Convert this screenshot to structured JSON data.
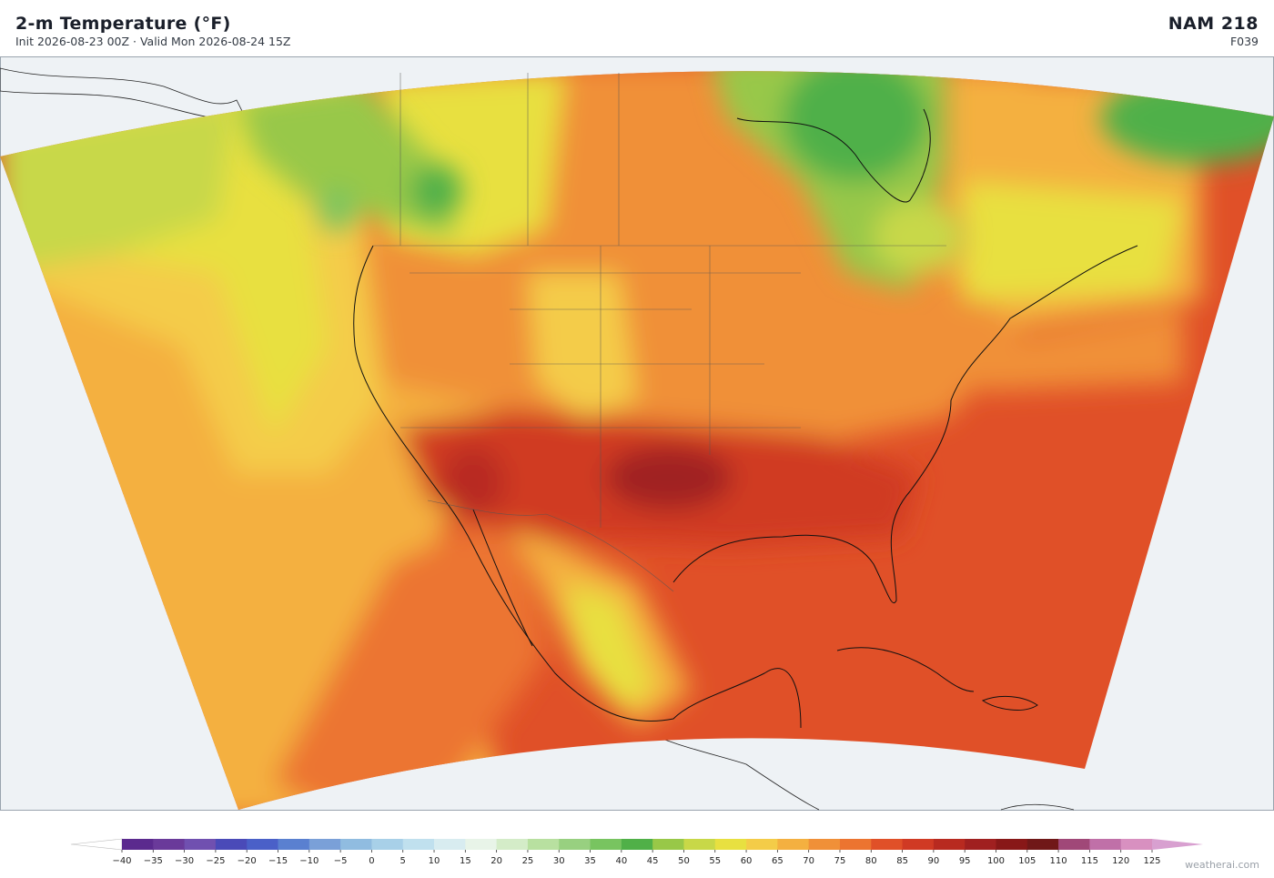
{
  "header": {
    "title": "2-m Temperature  (°F)",
    "subtitle": "Init 2026-08-23 00Z  ·  Valid Mon 2026-08-24 15Z",
    "model": "NAM  218",
    "forecast_hour": "F039"
  },
  "colorbar": {
    "ticks": [
      {
        "value": -40,
        "label": "−40"
      },
      {
        "value": -35,
        "label": "−35"
      },
      {
        "value": -30,
        "label": "−30"
      },
      {
        "value": -25,
        "label": "−25"
      },
      {
        "value": -20,
        "label": "−20"
      },
      {
        "value": -15,
        "label": "−15"
      },
      {
        "value": -10,
        "label": "−10"
      },
      {
        "value": -5,
        "label": "−5"
      },
      0,
      5,
      10,
      15,
      20,
      25,
      30,
      35,
      40,
      45,
      50,
      55,
      60,
      65,
      70,
      75,
      80,
      85,
      90,
      95,
      100,
      105,
      110,
      115,
      120,
      125
    ],
    "colors": [
      "#5b2a8e",
      "#6a3a9a",
      "#7050b0",
      "#4a4ab8",
      "#4a60c8",
      "#5a80d0",
      "#7aa0d8",
      "#90bce0",
      "#a8d0e8",
      "#c0e0ee",
      "#d8ecf0",
      "#e8f4e8",
      "#d4ecc8",
      "#b8e0a0",
      "#98d080",
      "#78c460",
      "#50b048",
      "#98c848",
      "#c8d848",
      "#e8e040",
      "#f4cc48",
      "#f4b040",
      "#f09038",
      "#ec7430",
      "#e05028",
      "#d03a24",
      "#b82a20",
      "#a02020",
      "#881818",
      "#701818",
      "#a04878",
      "#c070a8",
      "#d890c0"
    ],
    "under_color": "#ffffff",
    "over_color": "#d8a0d0"
  },
  "footer": {
    "credit": "weatherai.com"
  }
}
